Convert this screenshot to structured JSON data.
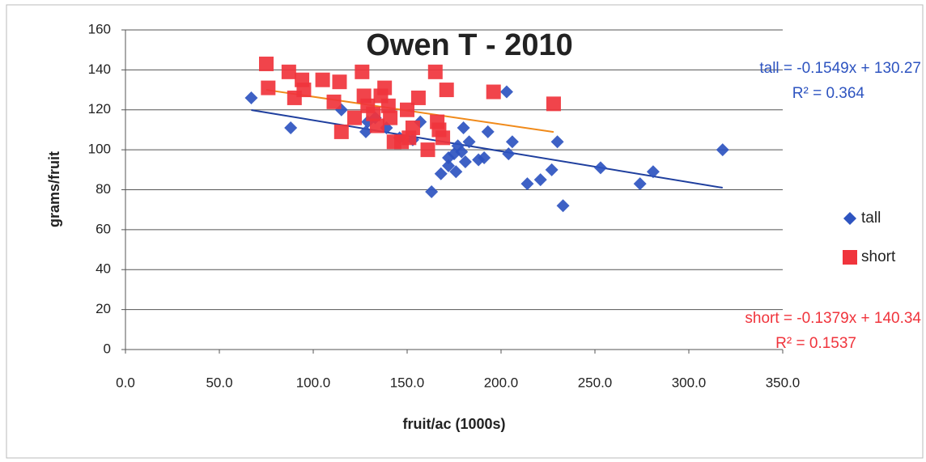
{
  "chart_data": {
    "type": "scatter",
    "title": "Owen T - 2010",
    "x_label": "fruit/ac (1000s)",
    "y_label": "grams/fruit",
    "xlim": [
      0,
      350
    ],
    "xticks": [
      {
        "value": 0,
        "label": "0.0"
      },
      {
        "value": 50,
        "label": "50.0"
      },
      {
        "value": 100,
        "label": "100.0"
      },
      {
        "value": 150,
        "label": "150.0"
      },
      {
        "value": 200,
        "label": "200.0"
      },
      {
        "value": 250,
        "label": "250.0"
      },
      {
        "value": 300,
        "label": "300.0"
      },
      {
        "value": 350,
        "label": "350.0"
      }
    ],
    "ylim": [
      0,
      160
    ],
    "yticks": [
      0,
      20,
      40,
      60,
      80,
      100,
      120,
      140,
      160
    ],
    "grid": true,
    "legend": "right",
    "series": [
      {
        "name": "tall",
        "color": "#2e54c0",
        "marker": "diamond",
        "x": [
          67,
          88,
          115,
          128,
          129,
          133,
          139,
          146,
          153,
          157,
          163,
          168,
          172,
          172,
          175,
          176,
          177,
          179,
          180,
          181,
          183,
          188,
          191,
          193,
          203,
          204,
          206,
          214,
          221,
          227,
          230,
          233,
          253,
          274,
          281,
          318
        ],
        "values": [
          126,
          111,
          120,
          109,
          114,
          116,
          111,
          106,
          105,
          114,
          79,
          88,
          92,
          96,
          98,
          89,
          102,
          99,
          111,
          94,
          104,
          95,
          96,
          109,
          129,
          98,
          104,
          83,
          85,
          90,
          104,
          72,
          91,
          83,
          89,
          100
        ]
      },
      {
        "name": "short",
        "color": "#f0343c",
        "marker": "square",
        "x": [
          75,
          76,
          87,
          90,
          94,
          95,
          105,
          111,
          114,
          115,
          122,
          126,
          127,
          129,
          132,
          134,
          136,
          138,
          140,
          141,
          143,
          147,
          150,
          151,
          153,
          156,
          161,
          165,
          166,
          167,
          169,
          171,
          196,
          228
        ],
        "values": [
          143,
          131,
          139,
          126,
          135,
          130,
          135,
          124,
          134,
          109,
          116,
          139,
          127,
          122,
          118,
          112,
          127,
          131,
          122,
          116,
          104,
          104,
          120,
          106,
          111,
          126,
          100,
          139,
          114,
          110,
          106,
          130,
          129,
          123
        ]
      }
    ],
    "trendlines": [
      {
        "color": "#1f3f9e",
        "x": [
          67,
          318
        ],
        "values": [
          119.9,
          81.0
        ]
      },
      {
        "color": "#f08a1a",
        "x": [
          75,
          228
        ],
        "values": [
          130.0,
          108.9
        ]
      }
    ],
    "annotations": [
      {
        "text": "tall = -0.1549x + 130.27",
        "color": "#2e54c0"
      },
      {
        "text": "R² = 0.364",
        "color": "#2e54c0"
      },
      {
        "text": "short  = -0.1379x + 140.34",
        "color": "#f0343c"
      },
      {
        "text": "R² = 0.1537",
        "color": "#f0343c"
      }
    ]
  }
}
